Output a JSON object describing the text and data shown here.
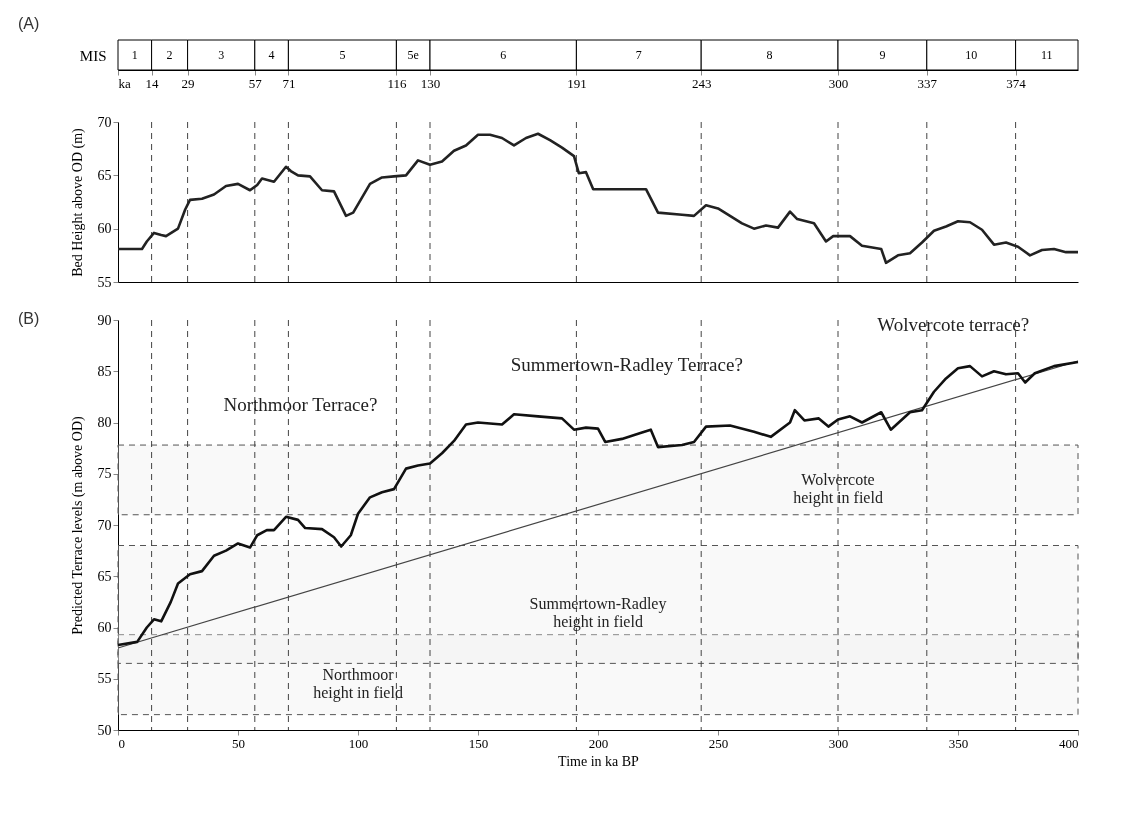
{
  "chart_data": [
    {
      "type": "bar",
      "title": "(A)",
      "orientation": "horizontal",
      "stacked": true,
      "ylabel": "MIS",
      "categories": [
        null
      ],
      "tick_labels": "x",
      "xlim": [
        0,
        400
      ],
      "xticks": [
        {
          "value": 0,
          "label": "ka"
        },
        14,
        29,
        57,
        71,
        116,
        130,
        191,
        243,
        300,
        337,
        374
      ],
      "series": [
        {
          "name": "1",
          "color": "#ffffff",
          "values": [
            14
          ]
        },
        {
          "name": "2",
          "color": "#ffffff",
          "values": [
            15
          ]
        },
        {
          "name": "3",
          "color": "#ffffff",
          "values": [
            28
          ]
        },
        {
          "name": "4",
          "color": "#ffffff",
          "values": [
            14
          ]
        },
        {
          "name": "5",
          "color": "#ffffff",
          "values": [
            45
          ]
        },
        {
          "name": "5e",
          "color": "#ffffff",
          "values": [
            14
          ]
        },
        {
          "name": "6",
          "color": "#ffffff",
          "values": [
            61
          ]
        },
        {
          "name": "7",
          "color": "#ffffff",
          "values": [
            52
          ]
        },
        {
          "name": "8",
          "color": "#ffffff",
          "values": [
            57
          ]
        },
        {
          "name": "9",
          "color": "#ffffff",
          "values": [
            37
          ]
        },
        {
          "name": "10",
          "color": "#ffffff",
          "values": [
            37
          ]
        },
        {
          "name": "11",
          "color": "#ffffff",
          "values": [
            26
          ]
        }
      ]
    },
    {
      "type": "line",
      "ylabel": "Bed Height above OD (m)",
      "xlim": [
        0,
        400
      ],
      "ylim": [
        55,
        70
      ],
      "yticks": [
        55,
        60,
        65,
        70
      ],
      "tick_labels": "y",
      "grid": false,
      "ref_lines": [
        {
          "axis": "x",
          "value": 14,
          "line_style": "dashed"
        },
        {
          "axis": "x",
          "value": 29,
          "line_style": "dashed"
        },
        {
          "axis": "x",
          "value": 57,
          "line_style": "dashed"
        },
        {
          "axis": "x",
          "value": 71,
          "line_style": "dashed"
        },
        {
          "axis": "x",
          "value": 116,
          "line_style": "dashed"
        },
        {
          "axis": "x",
          "value": 130,
          "line_style": "dashed"
        },
        {
          "axis": "x",
          "value": 191,
          "line_style": "dashed"
        },
        {
          "axis": "x",
          "value": 243,
          "line_style": "dashed"
        },
        {
          "axis": "x",
          "value": 300,
          "line_style": "dashed"
        },
        {
          "axis": "x",
          "value": 337,
          "line_style": "dashed"
        },
        {
          "axis": "x",
          "value": 374,
          "line_style": "dashed"
        }
      ],
      "series": [
        {
          "color": "#222222",
          "x": [
            0,
            10,
            12,
            15,
            18,
            20,
            25,
            28,
            30,
            35,
            40,
            45,
            50,
            55,
            58,
            60,
            65,
            70,
            72,
            75,
            80,
            85,
            90,
            95,
            98,
            105,
            110,
            115,
            120,
            125,
            130,
            135,
            140,
            145,
            150,
            155,
            160,
            165,
            170,
            175,
            180,
            185,
            190,
            192,
            195,
            198,
            210,
            220,
            225,
            235,
            240,
            245,
            250,
            255,
            260,
            265,
            270,
            275,
            280,
            283,
            290,
            295,
            298,
            305,
            310,
            318,
            320,
            325,
            330,
            335,
            340,
            345,
            350,
            355,
            360,
            365,
            370,
            375,
            380,
            385,
            390,
            395,
            400
          ],
          "values": [
            58.1,
            58.1,
            58.8,
            59.6,
            59.4,
            59.3,
            60.0,
            61.8,
            62.7,
            62.8,
            63.2,
            64.0,
            64.2,
            63.6,
            64.1,
            64.7,
            64.4,
            65.8,
            65.4,
            65.0,
            64.9,
            63.6,
            63.5,
            61.2,
            61.5,
            64.2,
            64.8,
            64.9,
            65.0,
            66.4,
            66.0,
            66.3,
            67.3,
            67.8,
            68.8,
            68.8,
            68.5,
            67.8,
            68.5,
            68.9,
            68.3,
            67.6,
            66.8,
            65.2,
            65.3,
            63.7,
            63.7,
            63.7,
            61.5,
            61.3,
            61.2,
            62.2,
            61.9,
            61.2,
            60.5,
            60.0,
            60.3,
            60.1,
            61.6,
            60.9,
            60.5,
            58.8,
            59.3,
            59.3,
            58.4,
            58.1,
            56.8,
            57.5,
            57.7,
            58.7,
            59.8,
            60.2,
            60.7,
            60.6,
            59.9,
            58.5,
            58.7,
            58.3,
            57.5,
            58.0,
            58.1,
            57.8,
            57.8
          ]
        }
      ]
    },
    {
      "type": "line",
      "title": "(B)",
      "xlabel": "Time in ka BP",
      "ylabel": "Predicted Terrace levels (m above OD)",
      "xlim": [
        0,
        400
      ],
      "ylim": [
        50,
        90
      ],
      "xticks": [
        0,
        50,
        100,
        150,
        200,
        250,
        300,
        350,
        400
      ],
      "yticks": [
        50,
        55,
        60,
        65,
        70,
        75,
        80,
        85,
        90
      ],
      "grid": false,
      "ref_lines": [
        {
          "axis": "x",
          "value": 14,
          "line_style": "dashed"
        },
        {
          "axis": "x",
          "value": 29,
          "line_style": "dashed"
        },
        {
          "axis": "x",
          "value": 57,
          "line_style": "dashed"
        },
        {
          "axis": "x",
          "value": 71,
          "line_style": "dashed"
        },
        {
          "axis": "x",
          "value": 116,
          "line_style": "dashed"
        },
        {
          "axis": "x",
          "value": 130,
          "line_style": "dashed"
        },
        {
          "axis": "x",
          "value": 191,
          "line_style": "dashed"
        },
        {
          "axis": "x",
          "value": 243,
          "line_style": "dashed"
        },
        {
          "axis": "x",
          "value": 300,
          "line_style": "dashed"
        },
        {
          "axis": "x",
          "value": 337,
          "line_style": "dashed"
        },
        {
          "axis": "x",
          "value": 374,
          "line_style": "dashed"
        }
      ],
      "bands": [
        {
          "axis": "y",
          "from": 51.5,
          "to": 59.3,
          "label": "Northmoor\nheight in field",
          "color": "#eeeeee"
        },
        {
          "axis": "y",
          "from": 56.5,
          "to": 68,
          "label": "Summertown-Radley\nheight in field",
          "color": "#eeeeee"
        },
        {
          "axis": "y",
          "from": 71,
          "to": 77.8,
          "label": "Wolvercote\nheight in field",
          "color": "#eeeeee"
        }
      ],
      "annotations": [
        "Northmoor Terrace?",
        "Summertown-Radley Terrace?",
        "Wolvercote terrace?"
      ],
      "series": [
        {
          "color": "#111111",
          "x": [
            0,
            8,
            12,
            15,
            18,
            22,
            25,
            30,
            35,
            40,
            45,
            50,
            55,
            58,
            62,
            65,
            70,
            75,
            78,
            85,
            90,
            93,
            97,
            100,
            105,
            110,
            115,
            120,
            125,
            130,
            135,
            140,
            145,
            150,
            160,
            165,
            175,
            185,
            190,
            195,
            200,
            203,
            210,
            218,
            222,
            225,
            235,
            240,
            245,
            255,
            265,
            272,
            280,
            282,
            286,
            292,
            296,
            300,
            305,
            310,
            318,
            322,
            330,
            335,
            340,
            345,
            350,
            355,
            360,
            365,
            370,
            375,
            378,
            382,
            390,
            400
          ],
          "values": [
            58.3,
            58.6,
            60.0,
            60.8,
            60.6,
            62.5,
            64.3,
            65.2,
            65.5,
            67.0,
            67.5,
            68.2,
            67.8,
            69.0,
            69.5,
            69.5,
            70.8,
            70.5,
            69.7,
            69.6,
            68.8,
            67.9,
            69.0,
            71.1,
            72.7,
            73.2,
            73.5,
            75.5,
            75.8,
            76.0,
            77.0,
            78.2,
            79.8,
            80.0,
            79.8,
            80.8,
            80.6,
            80.4,
            79.3,
            79.5,
            79.4,
            78.1,
            78.4,
            79.0,
            79.3,
            77.6,
            77.8,
            78.1,
            79.6,
            79.7,
            79.1,
            78.6,
            80.0,
            81.2,
            80.2,
            80.4,
            79.6,
            80.3,
            80.6,
            80.0,
            81.0,
            79.3,
            81.0,
            81.2,
            83.0,
            84.3,
            85.3,
            85.5,
            84.5,
            85.0,
            84.7,
            84.8,
            83.9,
            84.8,
            85.5,
            85.9
          ]
        },
        {
          "color": "#444444",
          "x": [
            0,
            400
          ],
          "values": [
            58,
            86
          ]
        }
      ]
    }
  ]
}
